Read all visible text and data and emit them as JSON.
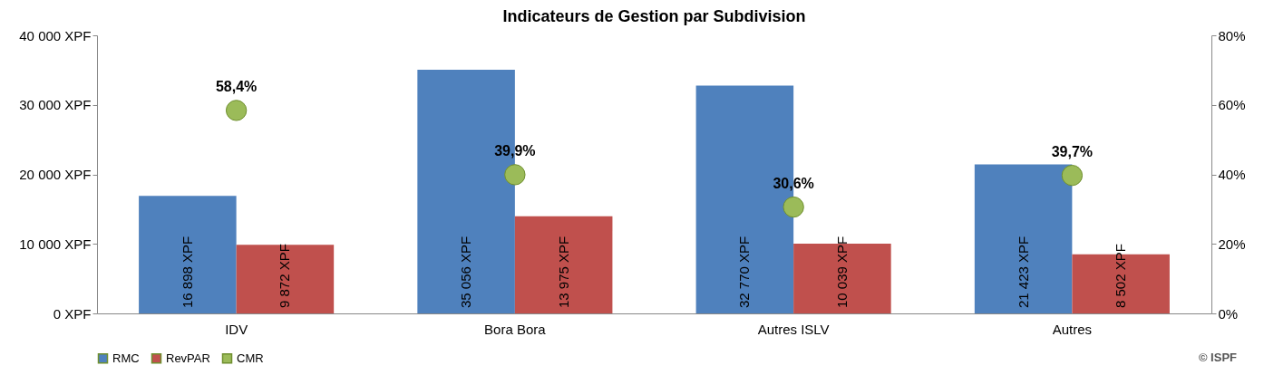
{
  "chart_data": {
    "type": "bar",
    "title": "Indicateurs de Gestion par Subdivision",
    "categories": [
      "IDV",
      "Bora Bora",
      "Autres ISLV",
      "Autres"
    ],
    "series": [
      {
        "name": "RMC",
        "color": "#4f81bd",
        "values": [
          16898,
          35056,
          32770,
          21423
        ],
        "value_labels": [
          "16 898 XPF",
          "35 056 XPF",
          "32 770 XPF",
          "21 423 XPF"
        ]
      },
      {
        "name": "RevPAR",
        "color": "#c0504d",
        "values": [
          9872,
          13975,
          10039,
          8502
        ],
        "value_labels": [
          "9 872 XPF",
          "13 975 XPF",
          "10 039 XPF",
          "8 502 XPF"
        ]
      },
      {
        "name": "CMR",
        "type": "scatter",
        "axis": "y2",
        "marker": "circle",
        "color": "#9bbb59",
        "values": [
          58.4,
          39.9,
          30.6,
          39.7
        ],
        "value_labels": [
          "58,4%",
          "39,9%",
          "30,6%",
          "39,7%"
        ]
      }
    ],
    "ylim": [
      0,
      40000
    ],
    "yticks": [
      {
        "value": 0,
        "label": "0 XPF"
      },
      {
        "value": 10000,
        "label": "10 000 XPF"
      },
      {
        "value": 20000,
        "label": "20 000 XPF"
      },
      {
        "value": 30000,
        "label": "30 000 XPF"
      },
      {
        "value": 40000,
        "label": "40 000 XPF"
      }
    ],
    "y2lim": [
      0,
      80
    ],
    "y2ticks": [
      {
        "value": 0,
        "label": "0%"
      },
      {
        "value": 20,
        "label": "20%"
      },
      {
        "value": 40,
        "label": "40%"
      },
      {
        "value": 60,
        "label": "60%"
      },
      {
        "value": 80,
        "label": "80%"
      }
    ],
    "grid": false,
    "legend": "bottom",
    "annotations": [
      "© ISPF"
    ]
  }
}
